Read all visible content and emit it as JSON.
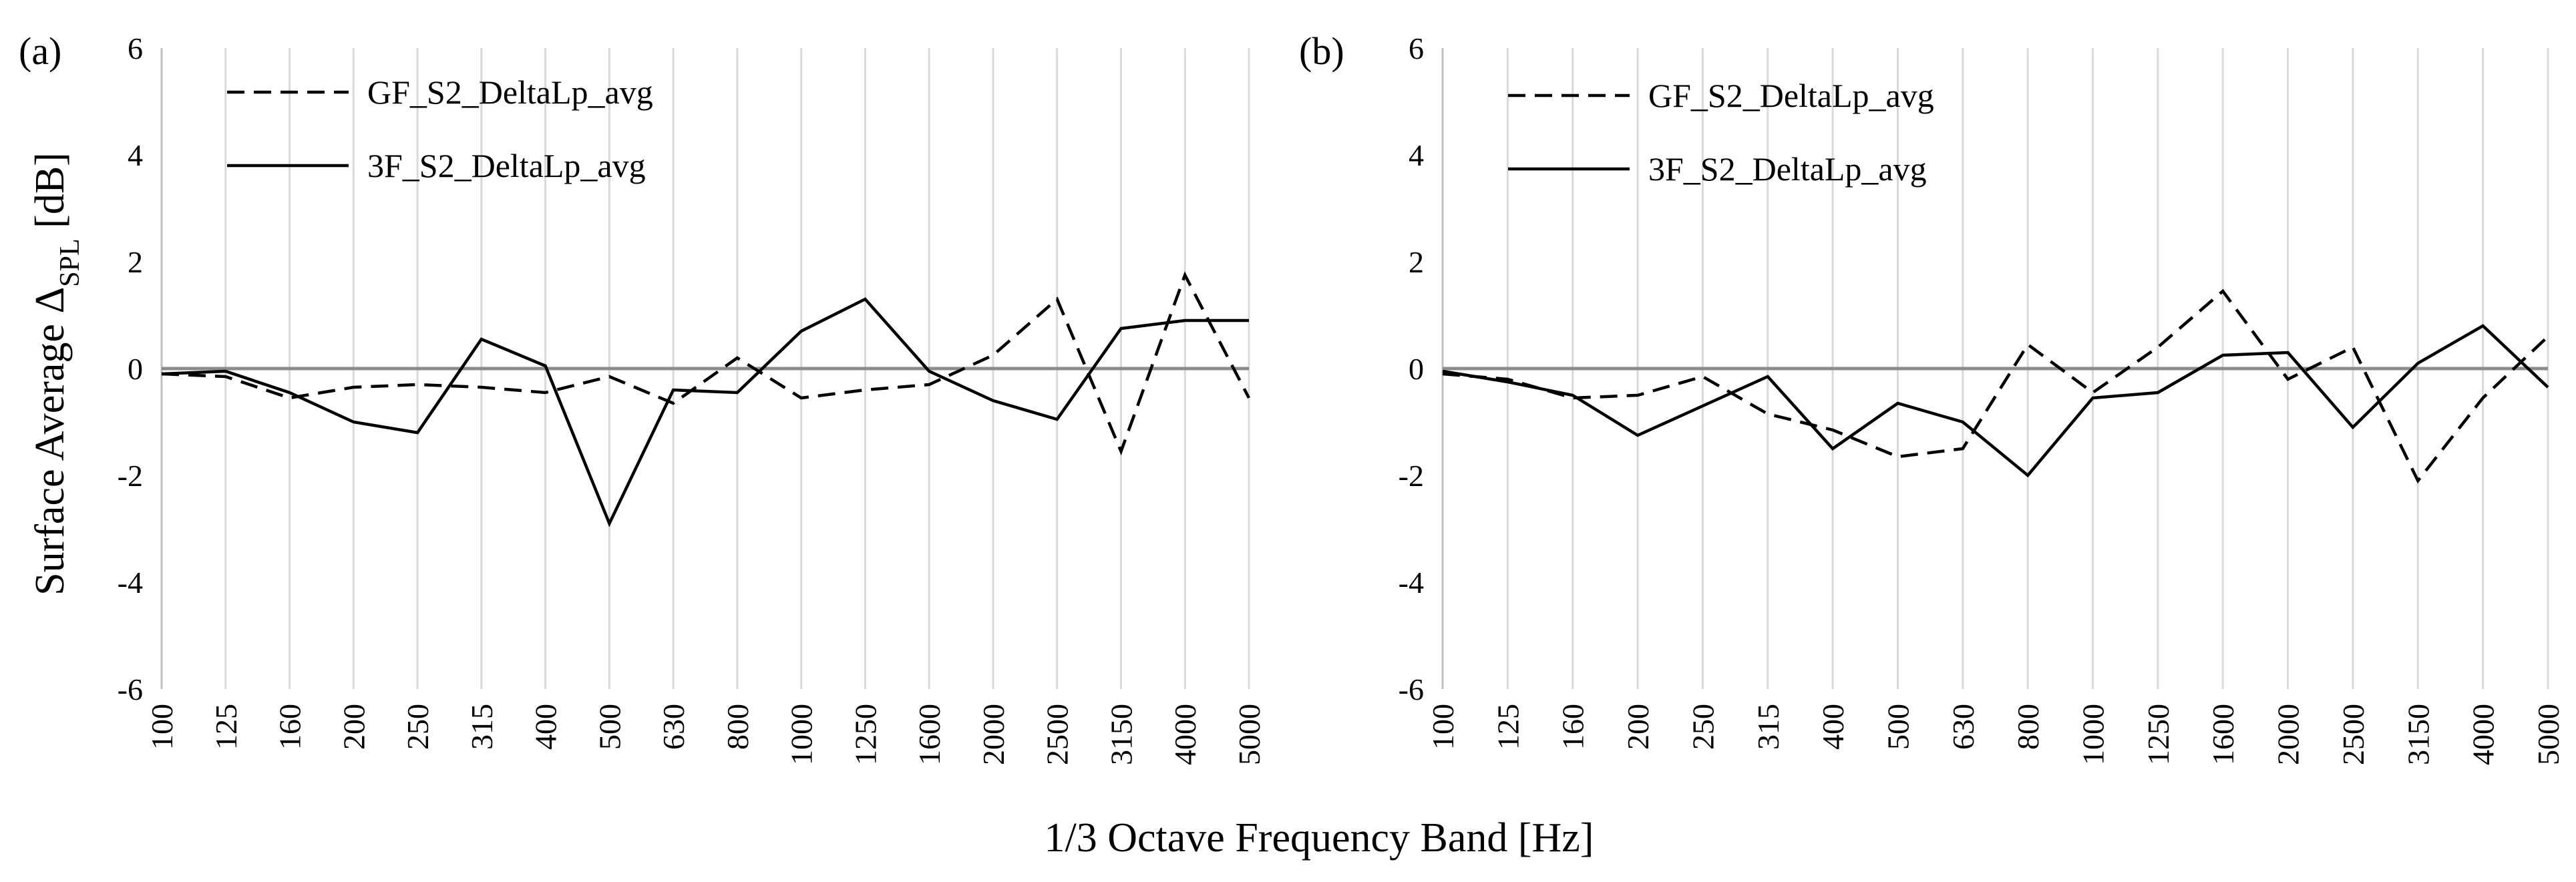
{
  "chart_data": [
    {
      "type": "line",
      "panel_label": "(a)",
      "categories": [
        "100",
        "125",
        "160",
        "200",
        "250",
        "315",
        "400",
        "500",
        "630",
        "800",
        "1000",
        "1250",
        "1600",
        "2000",
        "2500",
        "3150",
        "4000",
        "5000"
      ],
      "ylim": [
        -6,
        6
      ],
      "yticks": [
        "6",
        "4",
        "2",
        "0",
        "-2",
        "-4",
        "-6"
      ],
      "ylabel_main": "Surface Average Δ",
      "ylabel_sub": "SPL",
      "ylabel_unit": " [dB]",
      "legend_position": "top-left",
      "series": [
        {
          "name": "GF_S2_DeltaLp_avg",
          "style": "dashed",
          "values": [
            -0.1,
            -0.15,
            -0.55,
            -0.35,
            -0.3,
            -0.35,
            -0.45,
            -0.15,
            -0.65,
            0.2,
            -0.55,
            -0.4,
            -0.3,
            0.25,
            1.3,
            -1.55,
            1.75,
            -0.55
          ]
        },
        {
          "name": "3F_S2_DeltaLp_avg",
          "style": "solid",
          "values": [
            -0.1,
            -0.05,
            -0.45,
            -1.0,
            -1.2,
            0.55,
            0.05,
            -2.9,
            -0.4,
            -0.45,
            0.7,
            1.3,
            -0.05,
            -0.6,
            -0.95,
            0.75,
            0.9,
            0.9
          ]
        }
      ]
    },
    {
      "type": "line",
      "panel_label": "(b)",
      "categories": [
        "100",
        "125",
        "160",
        "200",
        "250",
        "315",
        "400",
        "500",
        "630",
        "800",
        "1000",
        "1250",
        "1600",
        "2000",
        "2500",
        "3150",
        "4000",
        "5000"
      ],
      "ylim": [
        -6,
        6
      ],
      "yticks": [
        "6",
        "4",
        "2",
        "0",
        "-2",
        "-4",
        "-6"
      ],
      "legend_position": "top-left",
      "series": [
        {
          "name": "GF_S2_DeltaLp_avg",
          "style": "dashed",
          "values": [
            -0.1,
            -0.2,
            -0.55,
            -0.5,
            -0.15,
            -0.85,
            -1.15,
            -1.65,
            -1.5,
            0.45,
            -0.45,
            0.4,
            1.45,
            -0.2,
            0.4,
            -2.1,
            -0.55,
            0.6
          ]
        },
        {
          "name": "3F_S2_DeltaLp_avg",
          "style": "solid",
          "values": [
            -0.05,
            -0.25,
            -0.5,
            -1.25,
            -0.7,
            -0.15,
            -1.5,
            -0.65,
            -1.0,
            -2.0,
            -0.55,
            -0.45,
            0.25,
            0.3,
            -1.1,
            0.1,
            0.8,
            -0.35
          ]
        }
      ]
    }
  ],
  "xlabel": "1/3 Octave Frequency Band [Hz]"
}
